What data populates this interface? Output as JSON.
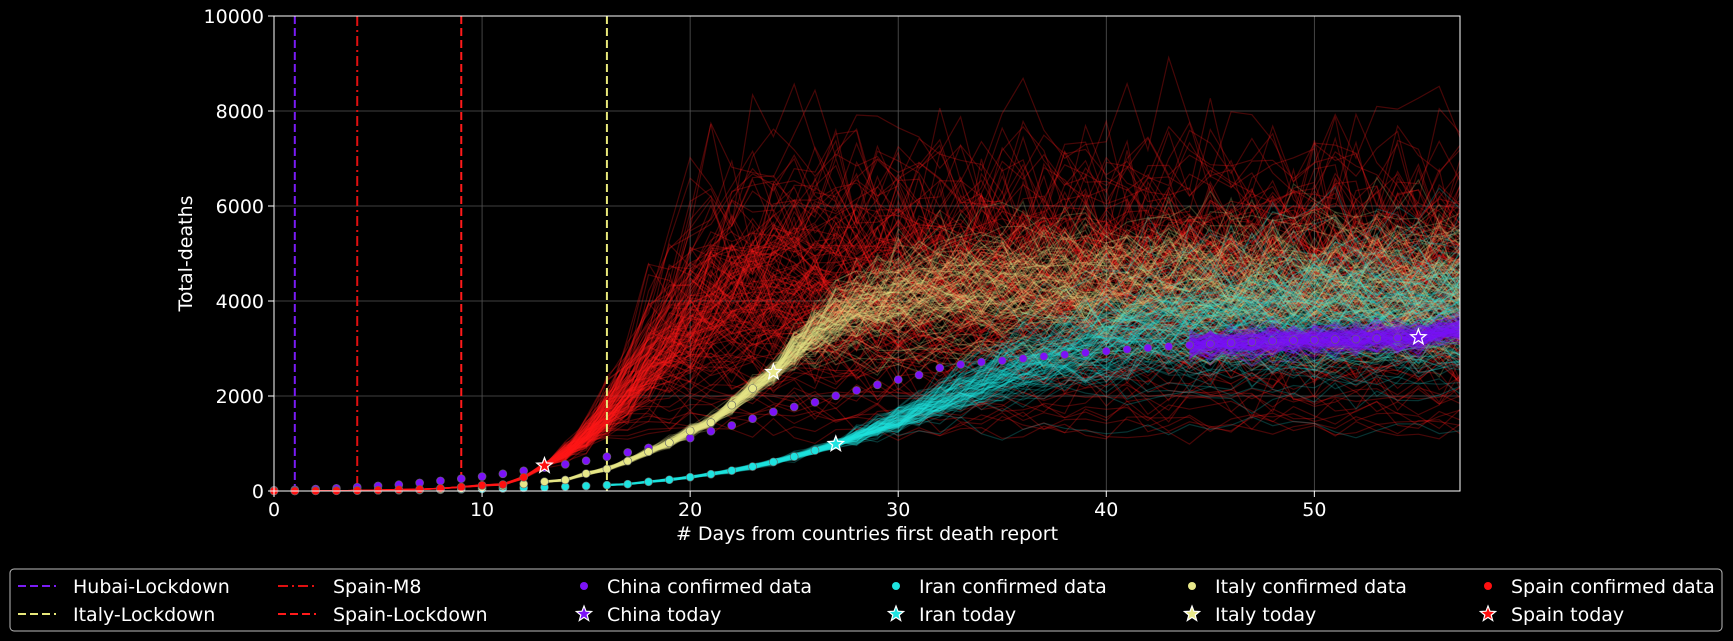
{
  "chart_data": {
    "type": "line",
    "xlabel": "# Days from countries first death report",
    "ylabel": "Total-deaths",
    "xlim": [
      0,
      57
    ],
    "ylim": [
      0,
      10000
    ],
    "xticks": [
      0,
      10,
      20,
      30,
      40,
      50
    ],
    "yticks": [
      0,
      2000,
      4000,
      6000,
      8000,
      10000
    ],
    "grid": true,
    "legend_position": "bottom",
    "vlines": [
      {
        "name": "Hubai-Lockdown",
        "x": 1,
        "color": "#7a1cf5",
        "style": "dashed"
      },
      {
        "name": "Spain-M8",
        "x": 4,
        "color": "#e01010",
        "style": "dashdot"
      },
      {
        "name": "Spain-Lockdown",
        "x": 9,
        "color": "#ff1a1a",
        "style": "dashed"
      },
      {
        "name": "Italy-Lockdown",
        "x": 16,
        "color": "#e8e87a",
        "style": "dashed"
      }
    ],
    "series": [
      {
        "name": "China confirmed data",
        "color": "#7b12f7",
        "x": [
          0,
          1,
          2,
          3,
          4,
          5,
          6,
          7,
          8,
          9,
          10,
          11,
          12,
          13,
          14,
          15,
          16,
          17,
          18,
          19,
          20,
          21,
          22,
          23,
          24,
          25,
          26,
          27,
          28,
          29,
          30,
          31,
          32,
          33,
          34,
          35,
          36,
          37,
          38,
          39,
          40,
          41,
          42,
          43,
          44,
          45,
          46,
          47,
          48,
          49,
          50,
          51,
          52,
          53,
          54,
          55
        ],
        "y": [
          17,
          25,
          41,
          56,
          80,
          106,
          132,
          170,
          213,
          259,
          304,
          361,
          425,
          490,
          562,
          636,
          722,
          811,
          908,
          1016,
          1113,
          1259,
          1380,
          1523,
          1665,
          1770,
          1868,
          2004,
          2118,
          2236,
          2345,
          2442,
          2592,
          2663,
          2715,
          2744,
          2788,
          2835,
          2870,
          2912,
          2943,
          2981,
          3012,
          3042,
          3070,
          3097,
          3119,
          3136,
          3158,
          3169,
          3176,
          3189,
          3199,
          3213,
          3226,
          3237
        ]
      },
      {
        "name": "Iran confirmed data",
        "color": "#1ee3e0",
        "x": [
          0,
          1,
          2,
          3,
          4,
          5,
          6,
          7,
          8,
          9,
          10,
          11,
          12,
          13,
          14,
          15,
          16,
          17,
          18,
          19,
          20,
          21,
          22,
          23,
          24,
          25,
          26,
          27
        ],
        "y": [
          2,
          4,
          5,
          8,
          12,
          15,
          16,
          19,
          26,
          34,
          43,
          54,
          66,
          77,
          92,
          107,
          124,
          145,
          194,
          237,
          291,
          354,
          429,
          514,
          611,
          724,
          853,
          988
        ]
      },
      {
        "name": "Italy confirmed data",
        "color": "#e8e88a",
        "x": [
          0,
          1,
          2,
          3,
          4,
          5,
          6,
          7,
          8,
          9,
          10,
          11,
          12,
          13,
          14,
          15,
          16,
          17,
          18,
          19,
          20,
          21,
          22,
          23,
          24
        ],
        "y": [
          1,
          3,
          7,
          10,
          12,
          17,
          21,
          29,
          34,
          52,
          79,
          107,
          148,
          197,
          233,
          366,
          463,
          631,
          827,
          1016,
          1266,
          1441,
          1809,
          2158,
          2503
        ]
      },
      {
        "name": "Spain confirmed data",
        "color": "#ff1010",
        "x": [
          0,
          1,
          2,
          3,
          4,
          5,
          6,
          7,
          8,
          9,
          10,
          11,
          12,
          13
        ],
        "y": [
          1,
          2,
          3,
          5,
          10,
          17,
          28,
          35,
          54,
          84,
          120,
          136,
          288,
          533
        ]
      }
    ],
    "today_markers": [
      {
        "name": "China today",
        "x": 55,
        "y": 3237,
        "color": "#7b12f7"
      },
      {
        "name": "Iran today",
        "x": 27,
        "y": 988,
        "color": "#1ee3e0"
      },
      {
        "name": "Italy today",
        "x": 24,
        "y": 2503,
        "color": "#e8e88a"
      },
      {
        "name": "Spain today",
        "x": 13,
        "y": 533,
        "color": "#ff1010"
      }
    ],
    "legend": [
      [
        "Hubai-Lockdown",
        "Italy-Lockdown"
      ],
      [
        "Spain-M8",
        "Spain-Lockdown"
      ],
      [
        "China confirmed data",
        "China today"
      ],
      [
        "Iran confirmed data",
        "Iran today"
      ],
      [
        "Italy confirmed data",
        "Italy today"
      ],
      [
        "Spain confirmed data",
        "Spain today"
      ]
    ]
  }
}
